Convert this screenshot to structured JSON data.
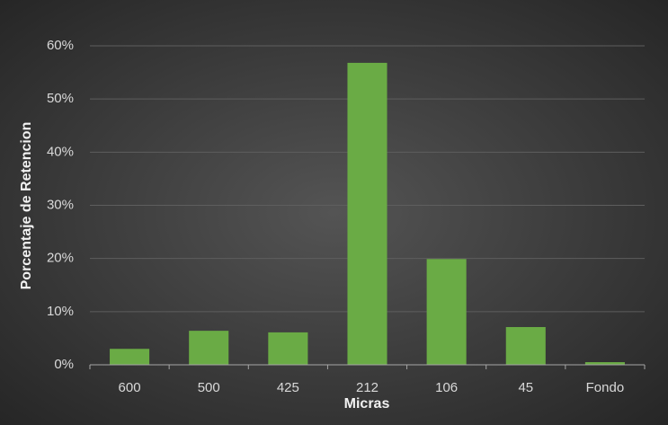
{
  "chart_data": {
    "type": "bar",
    "x_label": "Micras",
    "y_label": "Porcentaje de Retencion",
    "categories": [
      "600",
      "500",
      "425",
      "212",
      "106",
      "45",
      "Fondo"
    ],
    "values": [
      3.0,
      6.4,
      6.1,
      56.8,
      19.9,
      7.1,
      0.5
    ],
    "color": "#6aab45",
    "ylim": [
      0,
      60
    ],
    "yticks": [
      {
        "value": 0,
        "label": "0%"
      },
      {
        "value": 10,
        "label": "10%"
      },
      {
        "value": 20,
        "label": "20%"
      },
      {
        "value": 30,
        "label": "30%"
      },
      {
        "value": 40,
        "label": "40%"
      },
      {
        "value": 50,
        "label": "50%"
      },
      {
        "value": 60,
        "label": "60%"
      }
    ],
    "grid": true
  }
}
